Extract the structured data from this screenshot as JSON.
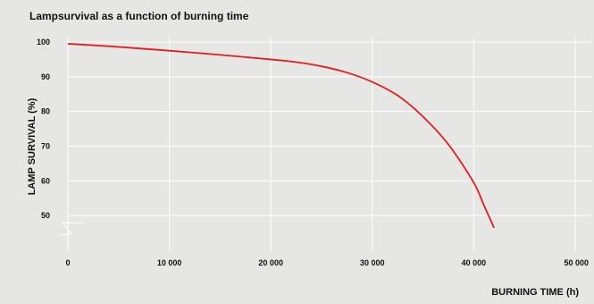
{
  "chart_data": {
    "type": "line",
    "title": "Lampsurvival as a function of burning time",
    "xlabel": "BURNING TIME (h)",
    "ylabel": "LAMP SURVIVAL (%)",
    "x_ticks": [
      0,
      10000,
      20000,
      30000,
      40000,
      50000
    ],
    "x_tick_labels": [
      "0",
      "10 000",
      "20 000",
      "30 000",
      "40 000",
      "50 000"
    ],
    "y_ticks": [
      50,
      60,
      70,
      80,
      90,
      100
    ],
    "y_tick_labels": [
      "50",
      "60",
      "70",
      "80",
      "90",
      "100"
    ],
    "xlim": [
      0,
      50000
    ],
    "ylim": [
      40,
      100
    ],
    "grid": true,
    "series": [
      {
        "color": "#e02020",
        "x": [
          0,
          5000,
          10000,
          15000,
          20000,
          22500,
          25000,
          27500,
          30000,
          32500,
          35000,
          37500,
          40000,
          41000,
          42000
        ],
        "y": [
          99.5,
          98.6,
          97.5,
          96.3,
          95.0,
          94.2,
          93.0,
          91.2,
          88.5,
          84.6,
          78.5,
          70.5,
          59.5,
          53.0,
          46.5
        ]
      }
    ]
  }
}
